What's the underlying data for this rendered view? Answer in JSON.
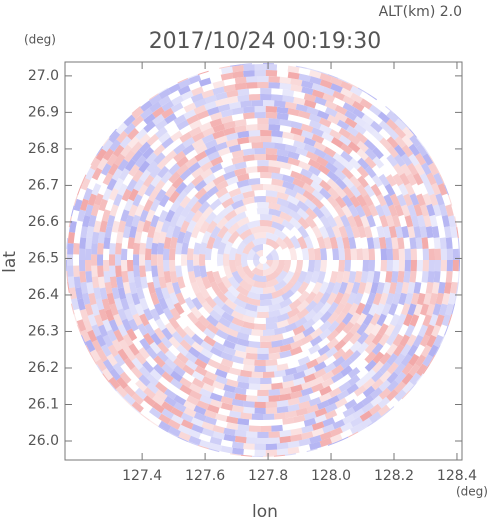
{
  "chart_data": {
    "type": "heatmap",
    "title": "2017/10/24 00:19:30",
    "subtitle": "ALT(km) 2.0",
    "x_label": "lon",
    "y_label": "lat",
    "x_unit": "(deg)",
    "y_unit": "(deg)",
    "xlim": [
      127.155,
      128.416
    ],
    "ylim": [
      25.948,
      27.038
    ],
    "xticks": [
      127.4,
      127.6,
      127.8,
      {
        "value": 128,
        "label": "128.0"
      },
      128.2,
      128.4
    ],
    "yticks": [
      {
        "value": 26,
        "label": "26.0"
      },
      26.1,
      26.2,
      26.3,
      26.4,
      26.5,
      26.6,
      26.7,
      26.8,
      26.9,
      {
        "value": 27,
        "label": "27.0"
      }
    ],
    "colors": [
      "#f2a8a8",
      "#b0b0f2"
    ]
  }
}
